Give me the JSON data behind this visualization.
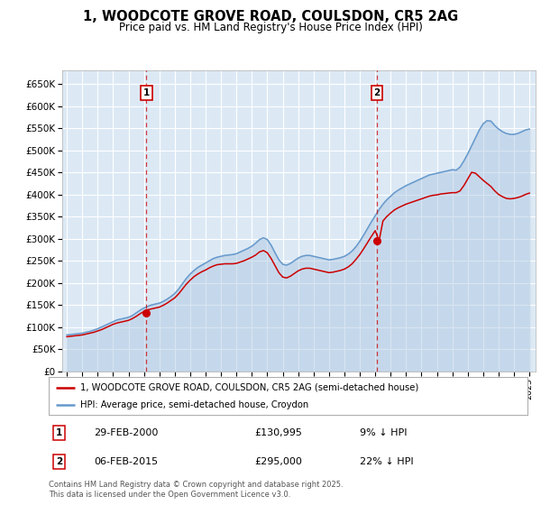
{
  "title": "1, WOODCOTE GROVE ROAD, COULSDON, CR5 2AG",
  "subtitle": "Price paid vs. HM Land Registry's House Price Index (HPI)",
  "ylabel_ticks": [
    "£0",
    "£50K",
    "£100K",
    "£150K",
    "£200K",
    "£250K",
    "£300K",
    "£350K",
    "£400K",
    "£450K",
    "£500K",
    "£550K",
    "£600K",
    "£650K"
  ],
  "ytick_values": [
    0,
    50000,
    100000,
    150000,
    200000,
    250000,
    300000,
    350000,
    400000,
    450000,
    500000,
    550000,
    600000,
    650000
  ],
  "xlim": [
    1994.7,
    2025.4
  ],
  "ylim": [
    0,
    680000
  ],
  "background_color": "#dce9f5",
  "grid_color": "#ffffff",
  "legend_label_red": "1, WOODCOTE GROVE ROAD, COULSDON, CR5 2AG (semi-detached house)",
  "legend_label_blue": "HPI: Average price, semi-detached house, Croydon",
  "marker1_date": "29-FEB-2000",
  "marker1_price": "£130,995",
  "marker1_hpi": "9% ↓ HPI",
  "marker1_x": 2000.16,
  "marker1_y": 130995,
  "marker2_date": "06-FEB-2015",
  "marker2_price": "£295,000",
  "marker2_hpi": "22% ↓ HPI",
  "marker2_x": 2015.1,
  "marker2_y": 295000,
  "red_color": "#cc0000",
  "blue_color": "#6699cc",
  "blue_fill_color": "#aac4e0",
  "footnote": "Contains HM Land Registry data © Crown copyright and database right 2025.\nThis data is licensed under the Open Government Licence v3.0.",
  "hpi_data_x": [
    1995.0,
    1995.25,
    1995.5,
    1995.75,
    1996.0,
    1996.25,
    1996.5,
    1996.75,
    1997.0,
    1997.25,
    1997.5,
    1997.75,
    1998.0,
    1998.25,
    1998.5,
    1998.75,
    1999.0,
    1999.25,
    1999.5,
    1999.75,
    2000.0,
    2000.25,
    2000.5,
    2000.75,
    2001.0,
    2001.25,
    2001.5,
    2001.75,
    2002.0,
    2002.25,
    2002.5,
    2002.75,
    2003.0,
    2003.25,
    2003.5,
    2003.75,
    2004.0,
    2004.25,
    2004.5,
    2004.75,
    2005.0,
    2005.25,
    2005.5,
    2005.75,
    2006.0,
    2006.25,
    2006.5,
    2006.75,
    2007.0,
    2007.25,
    2007.5,
    2007.75,
    2008.0,
    2008.25,
    2008.5,
    2008.75,
    2009.0,
    2009.25,
    2009.5,
    2009.75,
    2010.0,
    2010.25,
    2010.5,
    2010.75,
    2011.0,
    2011.25,
    2011.5,
    2011.75,
    2012.0,
    2012.25,
    2012.5,
    2012.75,
    2013.0,
    2013.25,
    2013.5,
    2013.75,
    2014.0,
    2014.25,
    2014.5,
    2014.75,
    2015.0,
    2015.25,
    2015.5,
    2015.75,
    2016.0,
    2016.25,
    2016.5,
    2016.75,
    2017.0,
    2017.25,
    2017.5,
    2017.75,
    2018.0,
    2018.25,
    2018.5,
    2018.75,
    2019.0,
    2019.25,
    2019.5,
    2019.75,
    2020.0,
    2020.25,
    2020.5,
    2020.75,
    2021.0,
    2021.25,
    2021.5,
    2021.75,
    2022.0,
    2022.25,
    2022.5,
    2022.75,
    2023.0,
    2023.25,
    2023.5,
    2023.75,
    2024.0,
    2024.25,
    2024.5,
    2024.75,
    2025.0
  ],
  "hpi_data_y": [
    82000,
    83000,
    84000,
    85000,
    86000,
    88000,
    90000,
    93000,
    96000,
    100000,
    104000,
    108000,
    112000,
    116000,
    118000,
    120000,
    122000,
    126000,
    132000,
    138000,
    143000,
    147000,
    150000,
    152000,
    154000,
    158000,
    163000,
    169000,
    176000,
    186000,
    198000,
    210000,
    220000,
    228000,
    235000,
    240000,
    245000,
    250000,
    255000,
    258000,
    260000,
    262000,
    263000,
    264000,
    266000,
    270000,
    274000,
    278000,
    283000,
    290000,
    298000,
    302000,
    298000,
    285000,
    268000,
    252000,
    242000,
    240000,
    244000,
    250000,
    256000,
    260000,
    262000,
    262000,
    260000,
    258000,
    256000,
    254000,
    252000,
    253000,
    255000,
    257000,
    260000,
    265000,
    272000,
    282000,
    294000,
    308000,
    323000,
    338000,
    352000,
    366000,
    378000,
    388000,
    396000,
    404000,
    410000,
    415000,
    420000,
    424000,
    428000,
    432000,
    436000,
    440000,
    444000,
    446000,
    448000,
    450000,
    452000,
    454000,
    456000,
    455000,
    462000,
    476000,
    492000,
    510000,
    528000,
    546000,
    560000,
    567000,
    566000,
    556000,
    548000,
    542000,
    538000,
    536000,
    536000,
    538000,
    542000,
    546000,
    548000
  ],
  "red_data_x": [
    1995.0,
    1995.25,
    1995.5,
    1995.75,
    1996.0,
    1996.25,
    1996.5,
    1996.75,
    1997.0,
    1997.25,
    1997.5,
    1997.75,
    1998.0,
    1998.25,
    1998.5,
    1998.75,
    1999.0,
    1999.25,
    1999.5,
    1999.75,
    2000.0,
    2000.25,
    2000.5,
    2000.75,
    2001.0,
    2001.25,
    2001.5,
    2001.75,
    2002.0,
    2002.25,
    2002.5,
    2002.75,
    2003.0,
    2003.25,
    2003.5,
    2003.75,
    2004.0,
    2004.25,
    2004.5,
    2004.75,
    2005.0,
    2005.25,
    2005.5,
    2005.75,
    2006.0,
    2006.25,
    2006.5,
    2006.75,
    2007.0,
    2007.25,
    2007.5,
    2007.75,
    2008.0,
    2008.25,
    2008.5,
    2008.75,
    2009.0,
    2009.25,
    2009.5,
    2009.75,
    2010.0,
    2010.25,
    2010.5,
    2010.75,
    2011.0,
    2011.25,
    2011.5,
    2011.75,
    2012.0,
    2012.25,
    2012.5,
    2012.75,
    2013.0,
    2013.25,
    2013.5,
    2013.75,
    2014.0,
    2014.25,
    2014.5,
    2014.75,
    2015.0,
    2015.25,
    2015.5,
    2015.75,
    2016.0,
    2016.25,
    2016.5,
    2016.75,
    2017.0,
    2017.25,
    2017.5,
    2017.75,
    2018.0,
    2018.25,
    2018.5,
    2018.75,
    2019.0,
    2019.25,
    2019.5,
    2019.75,
    2020.0,
    2020.25,
    2020.5,
    2020.75,
    2021.0,
    2021.25,
    2021.5,
    2021.75,
    2022.0,
    2022.25,
    2022.5,
    2022.75,
    2023.0,
    2023.25,
    2023.5,
    2023.75,
    2024.0,
    2024.25,
    2024.5,
    2024.75,
    2025.0
  ],
  "red_data_y": [
    78000,
    79000,
    80000,
    81000,
    82000,
    84000,
    86000,
    88000,
    91000,
    94000,
    98000,
    102000,
    106000,
    109000,
    111000,
    113000,
    115000,
    119000,
    124000,
    130000,
    135000,
    139000,
    141000,
    143000,
    145000,
    149000,
    154000,
    160000,
    166000,
    175000,
    186000,
    197000,
    206000,
    214000,
    220000,
    225000,
    229000,
    234000,
    238000,
    241000,
    242000,
    243000,
    243000,
    243000,
    244000,
    247000,
    250000,
    254000,
    258000,
    263000,
    270000,
    273000,
    268000,
    255000,
    239000,
    223000,
    213000,
    211000,
    215000,
    221000,
    227000,
    231000,
    233000,
    233000,
    231000,
    229000,
    227000,
    225000,
    223000,
    224000,
    226000,
    228000,
    231000,
    236000,
    243000,
    253000,
    264000,
    277000,
    291000,
    305000,
    318000,
    295000,
    340000,
    350000,
    358000,
    365000,
    370000,
    374000,
    378000,
    381000,
    384000,
    387000,
    390000,
    393000,
    396000,
    398000,
    399000,
    401000,
    402000,
    403000,
    404000,
    404000,
    408000,
    420000,
    435000,
    450000,
    448000,
    440000,
    432000,
    425000,
    418000,
    408000,
    400000,
    395000,
    391000,
    390000,
    391000,
    393000,
    396000,
    400000,
    403000
  ]
}
